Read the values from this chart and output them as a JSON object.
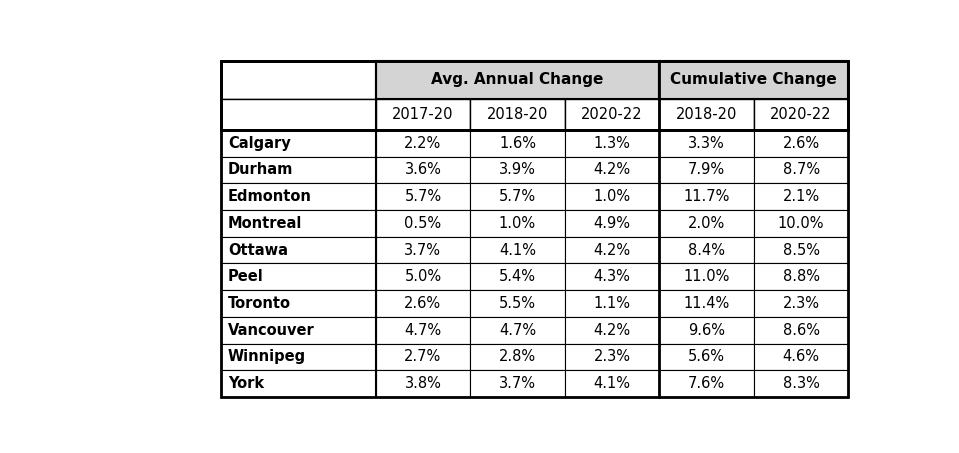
{
  "cities": [
    "Calgary",
    "Durham",
    "Edmonton",
    "Montreal",
    "Ottawa",
    "Peel",
    "Toronto",
    "Vancouver",
    "Winnipeg",
    "York"
  ],
  "avg_annual_2017_20": [
    "2.2%",
    "3.6%",
    "5.7%",
    "0.5%",
    "3.7%",
    "5.0%",
    "2.6%",
    "4.7%",
    "2.7%",
    "3.8%"
  ],
  "avg_annual_2018_20": [
    "1.6%",
    "3.9%",
    "5.7%",
    "1.0%",
    "4.1%",
    "5.4%",
    "5.5%",
    "4.7%",
    "2.8%",
    "3.7%"
  ],
  "avg_annual_2020_22": [
    "1.3%",
    "4.2%",
    "1.0%",
    "4.9%",
    "4.2%",
    "4.3%",
    "1.1%",
    "4.2%",
    "2.3%",
    "4.1%"
  ],
  "cumul_2018_20": [
    "3.3%",
    "7.9%",
    "11.7%",
    "2.0%",
    "8.4%",
    "11.0%",
    "11.4%",
    "9.6%",
    "5.6%",
    "7.6%"
  ],
  "cumul_2020_22": [
    "2.6%",
    "8.7%",
    "2.1%",
    "10.0%",
    "8.5%",
    "8.8%",
    "2.3%",
    "8.6%",
    "4.6%",
    "8.3%"
  ],
  "header1": "Avg. Annual Change",
  "header2": "Cumulative Change",
  "sub_headers": [
    "2017-20",
    "2018-20",
    "2020-22",
    "2018-20",
    "2020-22"
  ],
  "header_bg": "#d4d4d4",
  "bg_color": "#ffffff",
  "fig_width": 9.59,
  "fig_height": 4.53,
  "dpi": 100,
  "font_size": 10.5,
  "header_font_size": 11,
  "city_font_size": 10.5
}
